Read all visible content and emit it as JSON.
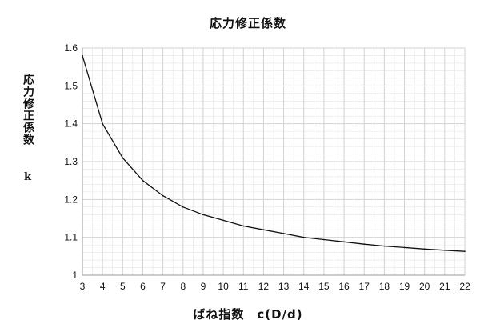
{
  "chart_data": {
    "type": "line",
    "title": "応力修正係数",
    "xlabel": "ばね指数　c(D/d)",
    "ylabel": "応力修正係数",
    "ylabel_symbol": "k",
    "xlim": [
      3,
      22
    ],
    "ylim": [
      1,
      1.6
    ],
    "x_ticks": [
      "3",
      "4",
      "5",
      "6",
      "7",
      "8",
      "9",
      "10",
      "11",
      "12",
      "13",
      "14",
      "15",
      "16",
      "17",
      "18",
      "19",
      "20",
      "21",
      "22"
    ],
    "y_ticks": [
      "1",
      "1.1",
      "1.2",
      "1.3",
      "1.4",
      "1.5",
      "1.6"
    ],
    "grid": true,
    "x": [
      3,
      4,
      5,
      6,
      7,
      8,
      9,
      10,
      11,
      12,
      13,
      14,
      15,
      16,
      17,
      18,
      19,
      20,
      21,
      22
    ],
    "y": [
      1.58,
      1.4,
      1.31,
      1.25,
      1.21,
      1.18,
      1.16,
      1.145,
      1.13,
      1.12,
      1.11,
      1.1,
      1.094,
      1.088,
      1.082,
      1.077,
      1.073,
      1.069,
      1.066,
      1.063
    ],
    "colors": {
      "line": "#111111",
      "grid": "#e4e4e4",
      "axis": "#9a9a9a"
    }
  }
}
